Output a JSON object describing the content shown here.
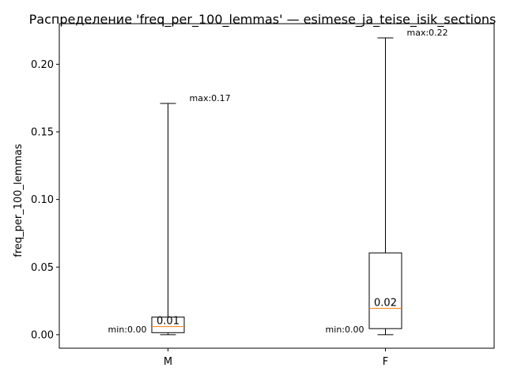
{
  "chart_data": {
    "type": "box",
    "title": "Распределение 'freq_per_100_lemmas' — esimese_ja_teise_isik_sections",
    "xlabel": "",
    "ylabel": "freq_per_100_lemmas",
    "ylim": [
      -0.01,
      0.23
    ],
    "yticks": [
      0.0,
      0.05,
      0.1,
      0.15,
      0.2
    ],
    "ytick_labels": [
      "0.00",
      "0.05",
      "0.10",
      "0.15",
      "0.20"
    ],
    "grid": false,
    "categories": [
      "M",
      "F"
    ],
    "boxes": [
      {
        "category": "M",
        "min": 0.0,
        "q1": 0.0015,
        "median": 0.006,
        "q3": 0.013,
        "max": 0.171,
        "median_label": "0.01",
        "min_label": "min:0.00",
        "max_label": "max:0.17"
      },
      {
        "category": "F",
        "min": 0.0,
        "q1": 0.0045,
        "median": 0.0195,
        "q3": 0.0605,
        "max": 0.2195,
        "median_label": "0.02",
        "min_label": "min:0.00",
        "max_label": "max:0.22"
      }
    ],
    "colors": {
      "box": "#000000",
      "median": "#ff7f0e"
    }
  }
}
